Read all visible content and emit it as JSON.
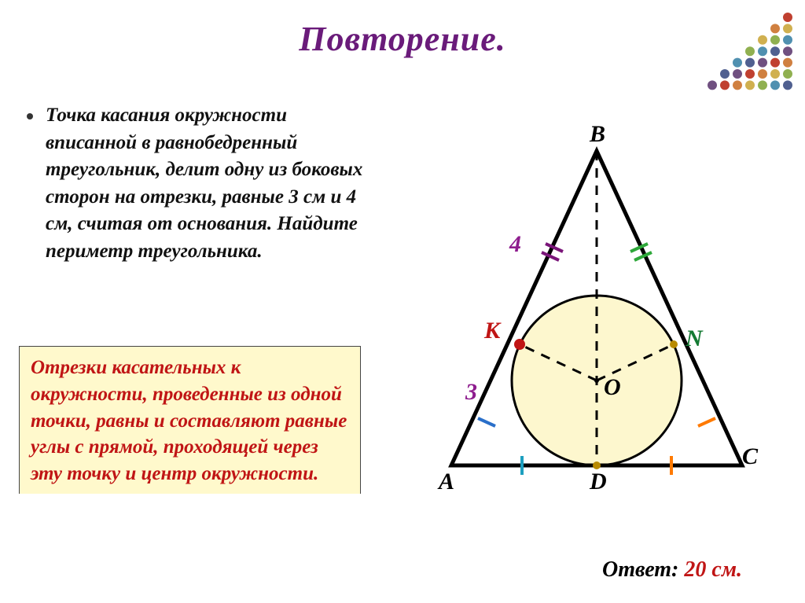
{
  "title": {
    "text": "Повторение.",
    "color": "#6a1b7a",
    "fontsize": 44
  },
  "problem": {
    "text": "Точка  касания  окружности вписанной  в  равнобедренный треугольник,  делит  одну  из боковых  сторон  на  отрезки, равные  3 см  и  4 см,  считая от  основания.  Найдите периметр  треугольника.",
    "fontsize": 25,
    "color": "#111111"
  },
  "rule": {
    "text": "Отрезки  касательных  к окружности,  проведенные  из одной  точки,  равны  и составляют  равные  углы  с прямой,  проходящей  через эту точку  и  центр  окружности.",
    "fontsize": 25,
    "color": "#c01515",
    "bg": "#fff9cc"
  },
  "answer": {
    "label": "Ответ: ",
    "value": "20 см.",
    "label_color": "#000000",
    "value_color": "#c01515",
    "fontsize": 28
  },
  "diagram": {
    "points": {
      "A": "A",
      "B": "B",
      "C": "C",
      "D": "D",
      "K": "К",
      "N": "N",
      "O": "O"
    },
    "segments": {
      "upper": "4",
      "lower": "3"
    },
    "colors": {
      "triangle": "#000000",
      "circle_stroke": "#000000",
      "circle_fill": "#fdf7ce",
      "segment4": "#8e1c8e",
      "segment3": "#8e1c8e",
      "K_label": "#c01515",
      "N_label": "#147a33",
      "O_label": "#000000",
      "tick_left_upper": "#7a1579",
      "tick_left_lower": "#2a6fc9",
      "tick_right_upper": "#2ea83a",
      "tick_right_lower": "#ff7a00",
      "tick_base_left": "#1d9fbf",
      "tick_base_right": "#ff7a00",
      "point_K": "#c01515",
      "point_N": "#b88a00",
      "point_D": "#b88a00"
    }
  },
  "corner_palette": [
    "#c04030",
    "#d08040",
    "#d0b050",
    "#90b050",
    "#5090b0",
    "#506090",
    "#705080"
  ]
}
